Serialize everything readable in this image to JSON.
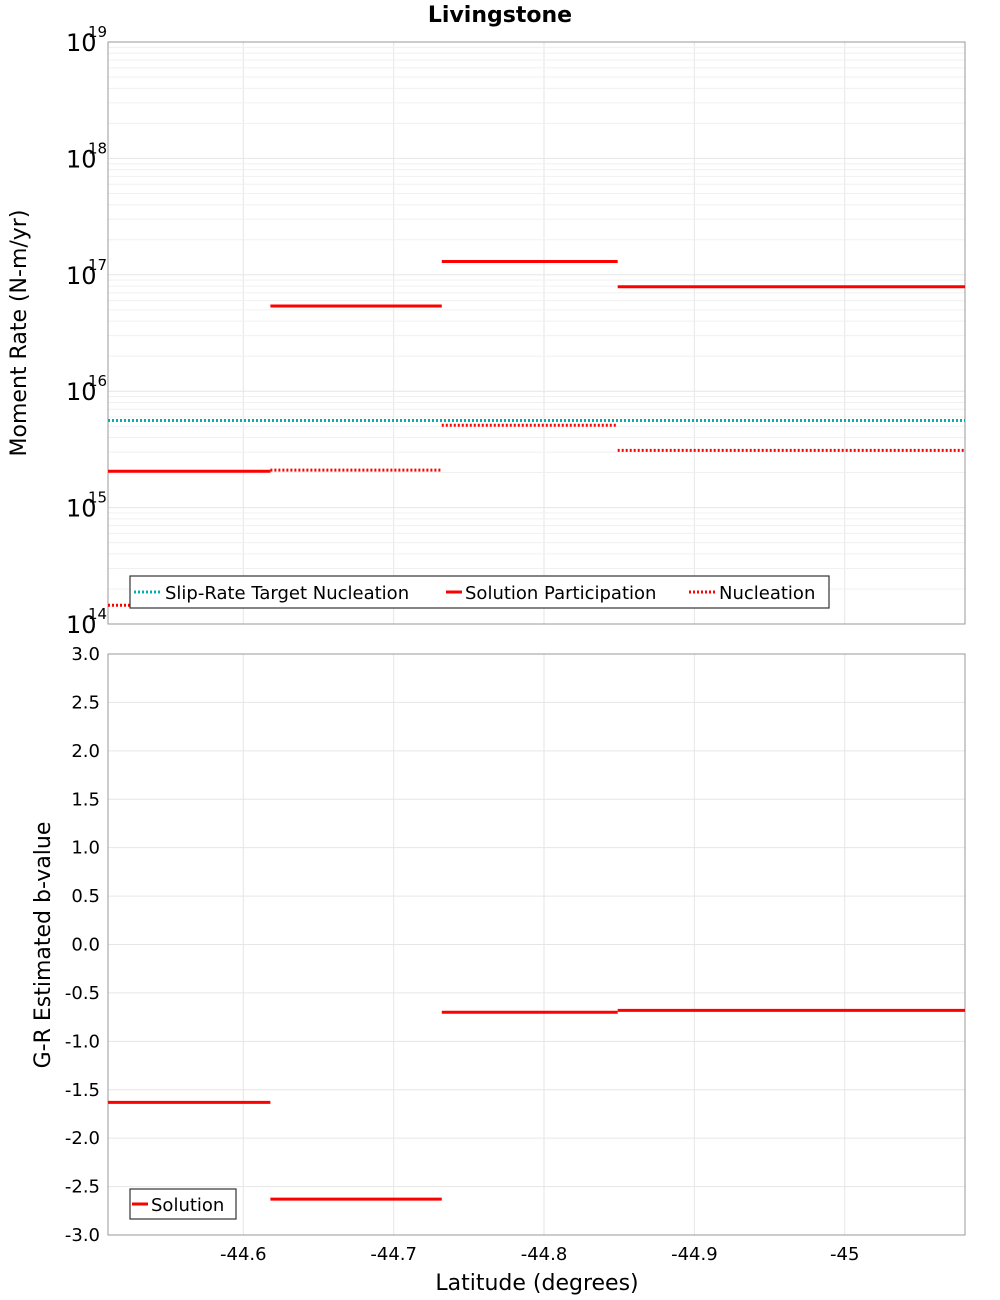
{
  "chart_data": [
    {
      "type": "line",
      "title": "Livingstone",
      "ylabel": "Moment Rate (N-m/yr)",
      "yscale": "log",
      "ylim": [
        100000000000000.0,
        1e+19
      ],
      "xlim": [
        -44.51,
        -45.08
      ],
      "x_reversed": true,
      "grid": true,
      "yticks": [
        {
          "base": "10",
          "exp": "14"
        },
        {
          "base": "10",
          "exp": "15"
        },
        {
          "base": "10",
          "exp": "16"
        },
        {
          "base": "10",
          "exp": "17"
        },
        {
          "base": "10",
          "exp": "18"
        },
        {
          "base": "10",
          "exp": "19"
        }
      ],
      "legend": {
        "placement": "bottom-left",
        "entries": [
          "Slip-Rate Target Nucleation",
          "Solution Participation",
          "Nucleation"
        ]
      },
      "series": [
        {
          "name": "Slip-Rate Target Nucleation",
          "color": "#00b0b0",
          "style": "dotted",
          "segments": [
            {
              "x": [
                -44.51,
                -45.08
              ],
              "y": 5600000000000000.0
            }
          ]
        },
        {
          "name": "Solution Participation",
          "color": "#ff0000",
          "style": "solid",
          "segments": [
            {
              "x": [
                -44.51,
                -44.618
              ],
              "y": 2050000000000000.0
            },
            {
              "x": [
                -44.618,
                -44.732
              ],
              "y": 5.4e+16
            },
            {
              "x": [
                -44.732,
                -44.849
              ],
              "y": 1.3e+17
            },
            {
              "x": [
                -44.849,
                -45.08
              ],
              "y": 7.9e+16
            }
          ]
        },
        {
          "name": "Nucleation",
          "color": "#ff0000",
          "style": "dotted",
          "segments": [
            {
              "x": [
                -44.51,
                -44.618
              ],
              "y": 145000000000000.0
            },
            {
              "x": [
                -44.618,
                -44.732
              ],
              "y": 2100000000000000.0
            },
            {
              "x": [
                -44.732,
                -44.849
              ],
              "y": 5100000000000000.0
            },
            {
              "x": [
                -44.849,
                -45.08
              ],
              "y": 3100000000000000.0
            }
          ]
        }
      ]
    },
    {
      "type": "line",
      "xlabel": "Latitude (degrees)",
      "ylabel": "G-R Estimated b-value",
      "ylim": [
        -3.0,
        3.0
      ],
      "xlim": [
        -44.51,
        -45.08
      ],
      "x_reversed": true,
      "grid": true,
      "yticks": [
        "3.0",
        "2.5",
        "2.0",
        "1.5",
        "1.0",
        "0.5",
        "0.0",
        "-0.5",
        "-1.0",
        "-1.5",
        "-2.0",
        "-2.5",
        "-3.0"
      ],
      "xticks": [
        "-44.6",
        "-44.7",
        "-44.8",
        "-44.9",
        "-45"
      ],
      "legend": {
        "placement": "bottom-left",
        "entries": [
          "Solution"
        ]
      },
      "series": [
        {
          "name": "Solution",
          "color": "#ff0000",
          "style": "solid",
          "segments": [
            {
              "x": [
                -44.51,
                -44.618
              ],
              "y": -1.63
            },
            {
              "x": [
                -44.618,
                -44.732
              ],
              "y": -2.63
            },
            {
              "x": [
                -44.732,
                -44.849
              ],
              "y": -0.7
            },
            {
              "x": [
                -44.849,
                -45.08
              ],
              "y": -0.68
            }
          ]
        }
      ]
    }
  ]
}
